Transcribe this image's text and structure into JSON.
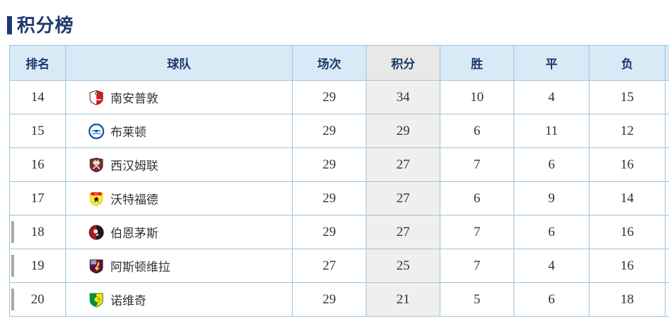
{
  "page": {
    "title": "积分榜"
  },
  "table": {
    "headers": [
      {
        "key": "rank",
        "label": "排名"
      },
      {
        "key": "team",
        "label": "球队"
      },
      {
        "key": "played",
        "label": "场次"
      },
      {
        "key": "points",
        "label": "积分"
      },
      {
        "key": "wins",
        "label": "胜"
      },
      {
        "key": "draws",
        "label": "平"
      },
      {
        "key": "losses",
        "label": "负"
      }
    ],
    "rows": [
      {
        "rank": "14",
        "team": "南安普敦",
        "logo": "southampton",
        "played": "29",
        "points": "34",
        "wins": "10",
        "draws": "4",
        "losses": "15",
        "relegation": false
      },
      {
        "rank": "15",
        "team": "布莱顿",
        "logo": "brighton",
        "played": "29",
        "points": "29",
        "wins": "6",
        "draws": "11",
        "losses": "12",
        "relegation": false
      },
      {
        "rank": "16",
        "team": "西汉姆联",
        "logo": "westham",
        "played": "29",
        "points": "27",
        "wins": "7",
        "draws": "6",
        "losses": "16",
        "relegation": false
      },
      {
        "rank": "17",
        "team": "沃特福德",
        "logo": "watford",
        "played": "29",
        "points": "27",
        "wins": "6",
        "draws": "9",
        "losses": "14",
        "relegation": false
      },
      {
        "rank": "18",
        "team": "伯恩茅斯",
        "logo": "bournemouth",
        "played": "29",
        "points": "27",
        "wins": "7",
        "draws": "6",
        "losses": "16",
        "relegation": true
      },
      {
        "rank": "19",
        "team": "阿斯顿维拉",
        "logo": "astonvilla",
        "played": "27",
        "points": "25",
        "wins": "7",
        "draws": "4",
        "losses": "16",
        "relegation": true
      },
      {
        "rank": "20",
        "team": "诺维奇",
        "logo": "norwich",
        "played": "29",
        "points": "21",
        "wins": "5",
        "draws": "6",
        "losses": "18",
        "relegation": true
      }
    ]
  },
  "colors": {
    "title_accent": "#1e3a6e",
    "header_bg": "#d9eaf7",
    "header_text": "#1a3a6b",
    "points_header_bg": "#e8e8e7",
    "points_cell_bg": "#efefed",
    "table_border": "#9dc4da",
    "relegation_marker": "#a8a8a8",
    "cell_text": "#333333"
  }
}
